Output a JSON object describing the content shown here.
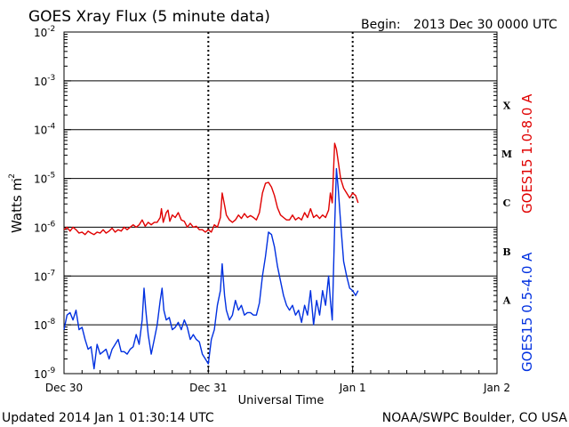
{
  "header": {
    "title": "GOES Xray Flux (5 minute data)",
    "begin_label": "Begin:",
    "begin_value": "2013 Dec 30 0000 UTC"
  },
  "footer": {
    "updated": "Updated 2014 Jan  1 01:30:14 UTC",
    "credit": "NOAA/SWPC Boulder, CO USA"
  },
  "chart_data": {
    "type": "line",
    "title": "GOES Xray Flux (5 minute data)",
    "xlabel": "Universal Time",
    "ylabel_base": "Watts m",
    "ylabel_exp": "-2",
    "y_scale": "log",
    "ylim": [
      1e-09,
      0.01
    ],
    "xlim_hours": [
      0,
      72
    ],
    "y_ticks": [
      {
        "mant": "10",
        "exp": "-2"
      },
      {
        "mant": "10",
        "exp": "-3"
      },
      {
        "mant": "10",
        "exp": "-4"
      },
      {
        "mant": "10",
        "exp": "-5"
      },
      {
        "mant": "10",
        "exp": "-6"
      },
      {
        "mant": "10",
        "exp": "-7"
      },
      {
        "mant": "10",
        "exp": "-8"
      },
      {
        "mant": "10",
        "exp": "-9"
      }
    ],
    "x_ticks": [
      {
        "label": "Dec 30",
        "hour": 0
      },
      {
        "label": "Dec 31",
        "hour": 24
      },
      {
        "label": "Jan 1",
        "hour": 48
      },
      {
        "label": "Jan 2",
        "hour": 72
      }
    ],
    "flare_classes": [
      {
        "label": "X",
        "exp": -3.5
      },
      {
        "label": "M",
        "exp": -4.5
      },
      {
        "label": "C",
        "exp": -5.5
      },
      {
        "label": "B",
        "exp": -6.5
      },
      {
        "label": "A",
        "exp": -7.5
      }
    ],
    "series": [
      {
        "name": "GOES15 1.0-8.0 A",
        "color": "#e00000",
        "points": [
          [
            0.0,
            -6.05
          ],
          [
            0.5,
            -6.0
          ],
          [
            1.0,
            -6.08
          ],
          [
            1.5,
            -6.0
          ],
          [
            2.0,
            -6.05
          ],
          [
            2.5,
            -6.12
          ],
          [
            3.0,
            -6.1
          ],
          [
            3.5,
            -6.15
          ],
          [
            4.0,
            -6.08
          ],
          [
            4.5,
            -6.12
          ],
          [
            5.0,
            -6.15
          ],
          [
            5.5,
            -6.1
          ],
          [
            6.0,
            -6.12
          ],
          [
            6.5,
            -6.05
          ],
          [
            7.0,
            -6.12
          ],
          [
            7.5,
            -6.08
          ],
          [
            8.0,
            -6.02
          ],
          [
            8.5,
            -6.1
          ],
          [
            9.0,
            -6.05
          ],
          [
            9.5,
            -6.08
          ],
          [
            10.0,
            -6.0
          ],
          [
            10.5,
            -6.05
          ],
          [
            11.0,
            -6.0
          ],
          [
            11.5,
            -5.95
          ],
          [
            12.0,
            -6.0
          ],
          [
            12.5,
            -5.95
          ],
          [
            13.0,
            -5.85
          ],
          [
            13.5,
            -5.98
          ],
          [
            14.0,
            -5.9
          ],
          [
            14.5,
            -5.95
          ],
          [
            15.0,
            -5.9
          ],
          [
            15.5,
            -5.9
          ],
          [
            16.0,
            -5.8
          ],
          [
            16.2,
            -5.62
          ],
          [
            16.5,
            -5.9
          ],
          [
            17.0,
            -5.7
          ],
          [
            17.3,
            -5.65
          ],
          [
            17.6,
            -5.88
          ],
          [
            18.0,
            -5.75
          ],
          [
            18.5,
            -5.8
          ],
          [
            19.0,
            -5.7
          ],
          [
            19.5,
            -5.85
          ],
          [
            20.0,
            -5.88
          ],
          [
            20.5,
            -6.0
          ],
          [
            21.0,
            -5.92
          ],
          [
            21.5,
            -6.0
          ],
          [
            22.0,
            -5.98
          ],
          [
            22.5,
            -6.05
          ],
          [
            23.0,
            -6.05
          ],
          [
            23.5,
            -6.1
          ],
          [
            24.0,
            -6.05
          ],
          [
            24.5,
            -6.1
          ],
          [
            25.0,
            -5.95
          ],
          [
            25.5,
            -6.0
          ],
          [
            26.0,
            -5.8
          ],
          [
            26.3,
            -5.3
          ],
          [
            26.7,
            -5.55
          ],
          [
            27.0,
            -5.75
          ],
          [
            27.5,
            -5.85
          ],
          [
            28.0,
            -5.9
          ],
          [
            28.5,
            -5.85
          ],
          [
            29.0,
            -5.75
          ],
          [
            29.5,
            -5.82
          ],
          [
            30.0,
            -5.72
          ],
          [
            30.5,
            -5.8
          ],
          [
            31.0,
            -5.76
          ],
          [
            31.5,
            -5.8
          ],
          [
            32.0,
            -5.85
          ],
          [
            32.5,
            -5.7
          ],
          [
            33.0,
            -5.3
          ],
          [
            33.5,
            -5.1
          ],
          [
            34.0,
            -5.08
          ],
          [
            34.5,
            -5.18
          ],
          [
            35.0,
            -5.35
          ],
          [
            35.5,
            -5.6
          ],
          [
            36.0,
            -5.75
          ],
          [
            36.5,
            -5.8
          ],
          [
            37.0,
            -5.85
          ],
          [
            37.5,
            -5.85
          ],
          [
            38.0,
            -5.75
          ],
          [
            38.5,
            -5.85
          ],
          [
            39.0,
            -5.8
          ],
          [
            39.5,
            -5.85
          ],
          [
            40.0,
            -5.7
          ],
          [
            40.5,
            -5.8
          ],
          [
            41.0,
            -5.62
          ],
          [
            41.5,
            -5.8
          ],
          [
            42.0,
            -5.75
          ],
          [
            42.5,
            -5.82
          ],
          [
            43.0,
            -5.75
          ],
          [
            43.5,
            -5.8
          ],
          [
            44.0,
            -5.65
          ],
          [
            44.3,
            -5.3
          ],
          [
            44.6,
            -5.5
          ],
          [
            45.0,
            -4.28
          ],
          [
            45.3,
            -4.4
          ],
          [
            45.6,
            -4.65
          ],
          [
            46.0,
            -5.0
          ],
          [
            46.5,
            -5.2
          ],
          [
            47.0,
            -5.3
          ],
          [
            47.5,
            -5.4
          ],
          [
            48.0,
            -5.3
          ],
          [
            48.5,
            -5.35
          ],
          [
            48.9,
            -5.5
          ]
        ]
      },
      {
        "name": "GOES15 0.5-4.0 A",
        "color": "#0030e0",
        "points": [
          [
            0.0,
            -8.1
          ],
          [
            0.5,
            -7.8
          ],
          [
            1.0,
            -7.75
          ],
          [
            1.5,
            -7.9
          ],
          [
            2.0,
            -7.7
          ],
          [
            2.5,
            -8.1
          ],
          [
            3.0,
            -8.05
          ],
          [
            3.5,
            -8.3
          ],
          [
            4.0,
            -8.5
          ],
          [
            4.5,
            -8.45
          ],
          [
            5.0,
            -8.9
          ],
          [
            5.5,
            -8.4
          ],
          [
            6.0,
            -8.6
          ],
          [
            6.5,
            -8.55
          ],
          [
            7.0,
            -8.5
          ],
          [
            7.5,
            -8.7
          ],
          [
            8.0,
            -8.5
          ],
          [
            8.5,
            -8.4
          ],
          [
            9.0,
            -8.3
          ],
          [
            9.5,
            -8.55
          ],
          [
            10.0,
            -8.55
          ],
          [
            10.5,
            -8.6
          ],
          [
            11.0,
            -8.5
          ],
          [
            11.5,
            -8.45
          ],
          [
            12.0,
            -8.2
          ],
          [
            12.5,
            -8.4
          ],
          [
            13.0,
            -7.9
          ],
          [
            13.3,
            -7.25
          ],
          [
            13.6,
            -7.7
          ],
          [
            14.0,
            -8.2
          ],
          [
            14.5,
            -8.6
          ],
          [
            15.0,
            -8.3
          ],
          [
            15.5,
            -8.0
          ],
          [
            16.0,
            -7.5
          ],
          [
            16.3,
            -7.25
          ],
          [
            16.6,
            -7.7
          ],
          [
            17.0,
            -7.9
          ],
          [
            17.5,
            -7.85
          ],
          [
            18.0,
            -8.1
          ],
          [
            18.5,
            -8.05
          ],
          [
            19.0,
            -7.95
          ],
          [
            19.5,
            -8.1
          ],
          [
            20.0,
            -7.9
          ],
          [
            20.5,
            -8.05
          ],
          [
            21.0,
            -8.3
          ],
          [
            21.5,
            -8.2
          ],
          [
            22.0,
            -8.3
          ],
          [
            22.5,
            -8.35
          ],
          [
            23.0,
            -8.6
          ],
          [
            23.5,
            -8.7
          ],
          [
            24.0,
            -8.8
          ],
          [
            24.5,
            -8.3
          ],
          [
            25.0,
            -8.1
          ],
          [
            25.5,
            -7.6
          ],
          [
            26.0,
            -7.3
          ],
          [
            26.3,
            -6.75
          ],
          [
            26.7,
            -7.4
          ],
          [
            27.0,
            -7.7
          ],
          [
            27.5,
            -7.9
          ],
          [
            28.0,
            -7.8
          ],
          [
            28.5,
            -7.5
          ],
          [
            29.0,
            -7.7
          ],
          [
            29.5,
            -7.6
          ],
          [
            30.0,
            -7.8
          ],
          [
            30.5,
            -7.75
          ],
          [
            31.0,
            -7.75
          ],
          [
            31.5,
            -7.8
          ],
          [
            32.0,
            -7.8
          ],
          [
            32.5,
            -7.55
          ],
          [
            33.0,
            -7.0
          ],
          [
            33.5,
            -6.6
          ],
          [
            34.0,
            -6.1
          ],
          [
            34.5,
            -6.15
          ],
          [
            35.0,
            -6.4
          ],
          [
            35.5,
            -6.8
          ],
          [
            36.0,
            -7.1
          ],
          [
            36.5,
            -7.4
          ],
          [
            37.0,
            -7.6
          ],
          [
            37.5,
            -7.7
          ],
          [
            38.0,
            -7.6
          ],
          [
            38.5,
            -7.8
          ],
          [
            39.0,
            -7.7
          ],
          [
            39.5,
            -7.95
          ],
          [
            40.0,
            -7.6
          ],
          [
            40.5,
            -7.8
          ],
          [
            41.0,
            -7.3
          ],
          [
            41.5,
            -8.0
          ],
          [
            42.0,
            -7.5
          ],
          [
            42.5,
            -7.8
          ],
          [
            43.0,
            -7.3
          ],
          [
            43.5,
            -7.6
          ],
          [
            44.0,
            -7.0
          ],
          [
            44.3,
            -7.5
          ],
          [
            44.6,
            -7.9
          ],
          [
            45.0,
            -6.0
          ],
          [
            45.3,
            -4.8
          ],
          [
            45.6,
            -5.2
          ],
          [
            46.0,
            -5.9
          ],
          [
            46.5,
            -6.7
          ],
          [
            47.0,
            -7.0
          ],
          [
            47.5,
            -7.25
          ],
          [
            48.0,
            -7.3
          ],
          [
            48.5,
            -7.4
          ],
          [
            48.9,
            -7.3
          ]
        ]
      }
    ]
  }
}
